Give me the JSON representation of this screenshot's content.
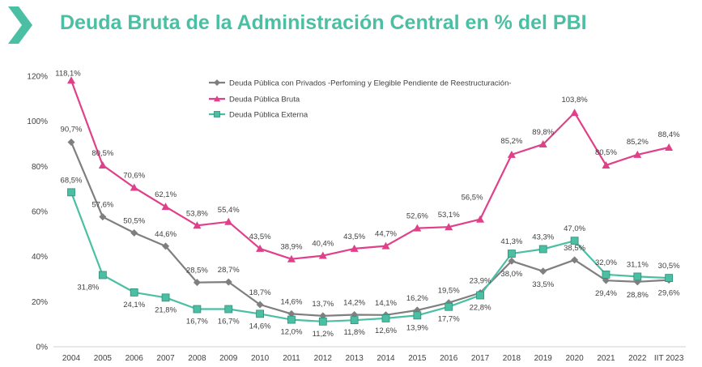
{
  "header": {
    "title": "Deuda Bruta de la Administración Central en % del PBI"
  },
  "chart_data": {
    "type": "line",
    "title": "Deuda Bruta de la Administración Central en % del PBI",
    "xlabel": "",
    "ylabel": "",
    "ylim": [
      0,
      120
    ],
    "yticks": [
      "0%",
      "20%",
      "40%",
      "60%",
      "80%",
      "100%",
      "120%"
    ],
    "grid": false,
    "legend_position": "top-center",
    "categories": [
      "2004",
      "2005",
      "2006",
      "2007",
      "2008",
      "2009",
      "2010",
      "2011",
      "2012",
      "2013",
      "2014",
      "2015",
      "2016",
      "2017",
      "2018",
      "2019",
      "2020",
      "2021",
      "2022",
      "IIT 2023"
    ],
    "series": [
      {
        "name": "Deuda Pública con Privados -Perfoming y Elegible Pendiente de Reestructuración-",
        "color": "#7f7f7f",
        "marker": "diamond",
        "values": [
          90.7,
          57.6,
          50.5,
          44.6,
          28.5,
          28.7,
          18.7,
          14.6,
          13.7,
          14.2,
          14.1,
          16.2,
          19.5,
          23.9,
          38.0,
          33.5,
          38.5,
          29.4,
          28.8,
          29.6
        ],
        "labels": [
          "90,7%",
          "57,6%",
          "50,5%",
          "44,6%",
          "28,5%",
          "28,7%",
          "18,7%",
          "14,6%",
          "13,7%",
          "14,2%",
          "14,1%",
          "16,2%",
          "19,5%",
          "23,9%",
          "38,0%",
          "33,5%",
          "38,5%",
          "29,4%",
          "28,8%",
          "29,6%"
        ]
      },
      {
        "name": "Deuda Pública Bruta",
        "color": "#e0408a",
        "marker": "triangle",
        "values": [
          118.1,
          80.5,
          70.6,
          62.1,
          53.8,
          55.4,
          43.5,
          38.9,
          40.4,
          43.5,
          44.7,
          52.6,
          53.1,
          56.5,
          85.2,
          89.8,
          103.8,
          80.5,
          85.2,
          88.4
        ],
        "labels": [
          "118,1%",
          "80,5%",
          "70,6%",
          "62,1%",
          "53,8%",
          "55,4%",
          "43,5%",
          "38,9%",
          "40,4%",
          "43,5%",
          "44,7%",
          "52,6%",
          "53,1%",
          "56,5%",
          "85,2%",
          "89,8%",
          "103,8%",
          "80,5%",
          "85,2%",
          "88,4%"
        ]
      },
      {
        "name": "Deuda Pública Externa",
        "color": "#4bbfa3",
        "marker": "square",
        "values": [
          68.5,
          31.8,
          24.1,
          21.8,
          16.7,
          16.7,
          14.6,
          12.0,
          11.2,
          11.8,
          12.6,
          13.9,
          17.7,
          22.8,
          41.3,
          43.3,
          47.0,
          32.0,
          31.1,
          30.5
        ],
        "labels": [
          "68,5%",
          "31,8%",
          "24,1%",
          "21,8%",
          "16,7%",
          "16,7%",
          "14,6%",
          "12,0%",
          "11,2%",
          "11,8%",
          "12,6%",
          "13,9%",
          "17,7%",
          "22,8%",
          "41,3%",
          "43,3%",
          "47,0%",
          "32,0%",
          "31,1%",
          "30,5%"
        ]
      }
    ]
  }
}
